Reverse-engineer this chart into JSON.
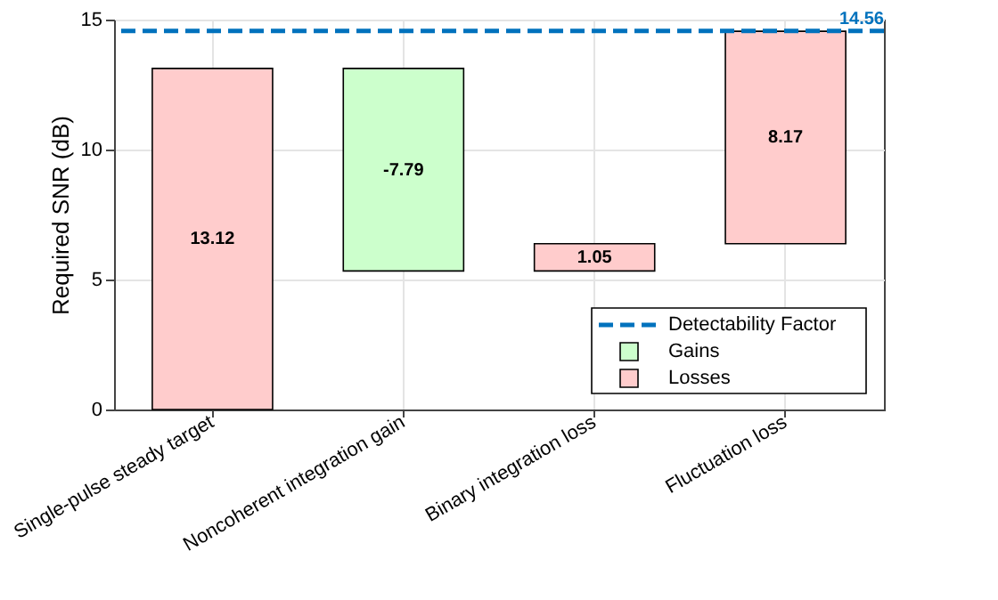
{
  "chart_data": {
    "type": "bar",
    "ylabel": "Required SNR (dB)",
    "categories": [
      "Single-pulse steady target",
      "Noncoherent integration gain",
      "Binary integration loss",
      "Fluctuation loss"
    ],
    "series": [
      {
        "name": "Gains",
        "color": "#ccffcc",
        "values": [
          null,
          -7.79,
          null,
          null
        ],
        "base": [
          null,
          13.12,
          null,
          null
        ]
      },
      {
        "name": "Losses",
        "color": "#ffcccc",
        "values": [
          13.12,
          null,
          1.05,
          8.17
        ],
        "base": [
          0,
          null,
          5.33,
          6.38
        ]
      }
    ],
    "data_labels": true,
    "ref_lines": [
      {
        "axis": "y",
        "value": 14.56,
        "label": "Detectability Factor",
        "color": "#0072bd",
        "line_style": "dashed"
      }
    ],
    "annotations": [
      {
        "text": "14.56",
        "y": 14.56
      }
    ],
    "ylim": [
      0,
      15
    ],
    "yticks": [
      0,
      5,
      10,
      15
    ],
    "grid": true,
    "legend": "bottom right"
  }
}
